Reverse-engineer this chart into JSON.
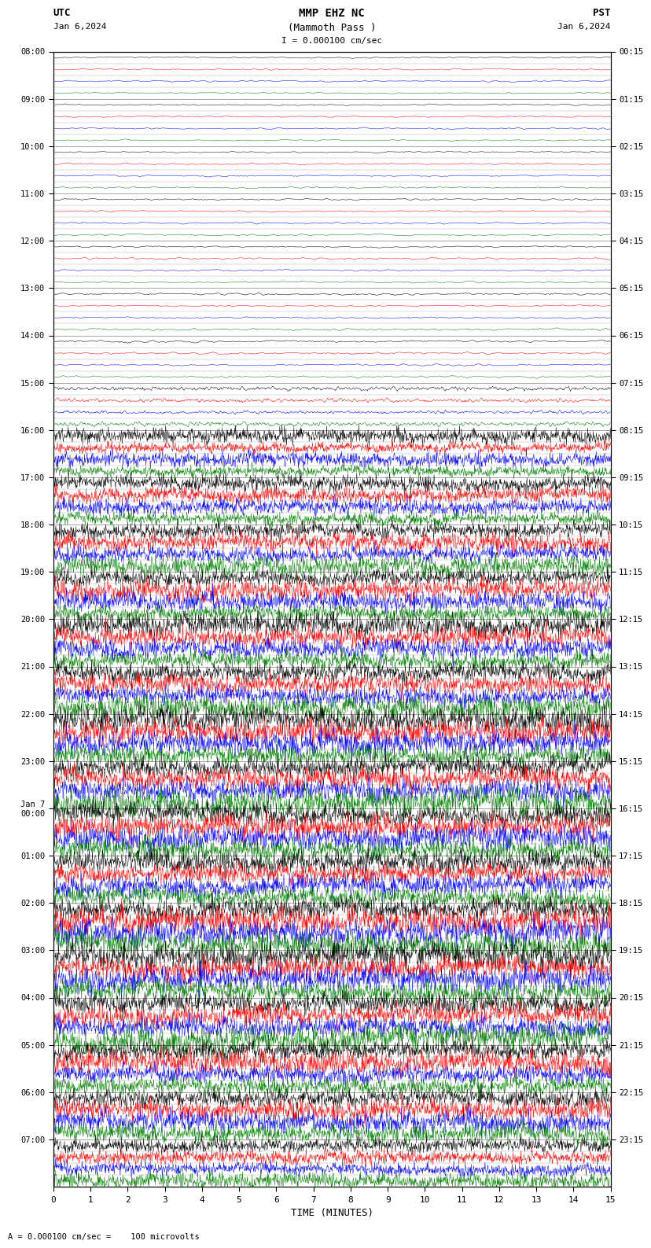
{
  "title_line1": "MMP EHZ NC",
  "title_line2": "(Mammoth Pass )",
  "title_line3": "I = 0.000100 cm/sec",
  "utc_label": "UTC",
  "utc_date": "Jan 6,2024",
  "pst_label": "PST",
  "pst_date": "Jan 6,2024",
  "xlabel": "TIME (MINUTES)",
  "footer": "A = 0.000100 cm/sec =    100 microvolts",
  "left_times_utc": [
    "08:00",
    "",
    "",
    "",
    "09:00",
    "",
    "",
    "",
    "10:00",
    "",
    "",
    "",
    "11:00",
    "",
    "",
    "",
    "12:00",
    "",
    "",
    "",
    "13:00",
    "",
    "",
    "",
    "14:00",
    "",
    "",
    "",
    "15:00",
    "",
    "",
    "",
    "16:00",
    "",
    "",
    "",
    "17:00",
    "",
    "",
    "",
    "18:00",
    "",
    "",
    "",
    "19:00",
    "",
    "",
    "",
    "20:00",
    "",
    "",
    "",
    "21:00",
    "",
    "",
    "",
    "22:00",
    "",
    "",
    "",
    "23:00",
    "",
    "",
    "",
    "Jan 7\n00:00",
    "",
    "",
    "",
    "01:00",
    "",
    "",
    "",
    "02:00",
    "",
    "",
    "",
    "03:00",
    "",
    "",
    "",
    "04:00",
    "",
    "",
    "",
    "05:00",
    "",
    "",
    "",
    "06:00",
    "",
    "",
    "",
    "07:00",
    "",
    "",
    ""
  ],
  "right_times_pst": [
    "00:15",
    "",
    "",
    "",
    "01:15",
    "",
    "",
    "",
    "02:15",
    "",
    "",
    "",
    "03:15",
    "",
    "",
    "",
    "04:15",
    "",
    "",
    "",
    "05:15",
    "",
    "",
    "",
    "06:15",
    "",
    "",
    "",
    "07:15",
    "",
    "",
    "",
    "08:15",
    "",
    "",
    "",
    "09:15",
    "",
    "",
    "",
    "10:15",
    "",
    "",
    "",
    "11:15",
    "",
    "",
    "",
    "12:15",
    "",
    "",
    "",
    "13:15",
    "",
    "",
    "",
    "14:15",
    "",
    "",
    "",
    "15:15",
    "",
    "",
    "",
    "16:15",
    "",
    "",
    "",
    "17:15",
    "",
    "",
    "",
    "18:15",
    "",
    "",
    "",
    "19:15",
    "",
    "",
    "",
    "20:15",
    "",
    "",
    "",
    "21:15",
    "",
    "",
    "",
    "22:15",
    "",
    "",
    "",
    "23:15",
    "",
    "",
    ""
  ],
  "trace_colors": [
    "black",
    "red",
    "blue",
    "green"
  ],
  "num_rows": 96,
  "bg_color": "white",
  "noise_seed": 42,
  "xmin": 0,
  "xmax": 15,
  "xticks": [
    0,
    1,
    2,
    3,
    4,
    5,
    6,
    7,
    8,
    9,
    10,
    11,
    12,
    13,
    14,
    15
  ],
  "amplitude_by_hour": [
    0.06,
    0.06,
    0.07,
    0.07,
    0.07,
    0.07,
    0.08,
    0.15,
    0.55,
    0.65,
    0.75,
    0.8,
    0.85,
    0.9,
    0.95,
    1.0,
    1.0,
    1.0,
    1.0,
    1.0,
    1.0,
    0.9,
    0.8,
    0.6
  ]
}
